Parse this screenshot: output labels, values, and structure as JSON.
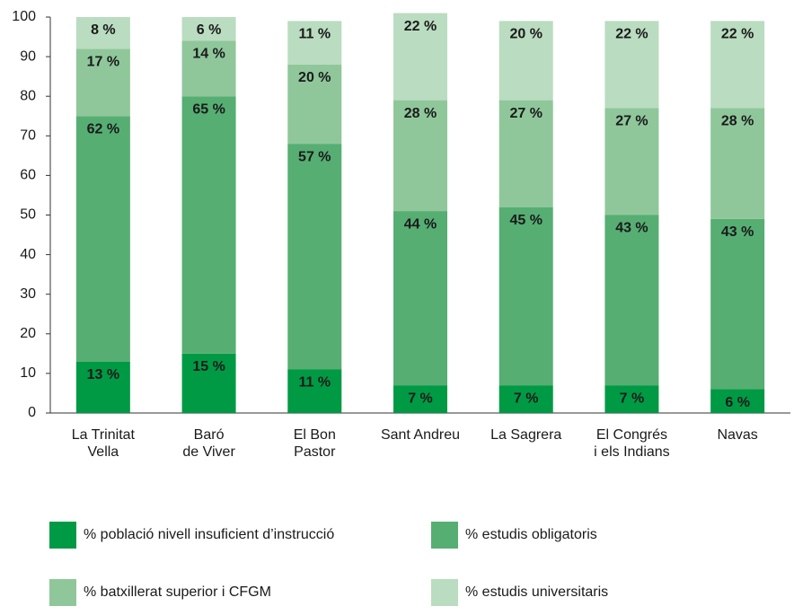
{
  "chart_data": {
    "type": "stacked_bar",
    "categories": [
      [
        "La Trinitat",
        "Vella"
      ],
      [
        "Baró",
        "de Viver"
      ],
      [
        "El Bon",
        "Pastor"
      ],
      [
        "Sant Andreu"
      ],
      [
        "La Sagrera"
      ],
      [
        "El Congrés",
        "i els Indians"
      ],
      [
        "Navas"
      ]
    ],
    "series": [
      {
        "name": "% població nivell insuficient d’instrucció",
        "color": "#009a44",
        "label_color": "#ffffff",
        "values": [
          13,
          15,
          11,
          7,
          7,
          7,
          6
        ],
        "value_labels": [
          "13 %",
          "15 %",
          "11 %",
          "7 %",
          "7 %",
          "7 %",
          "6 %"
        ]
      },
      {
        "name": "% estudis obligatoris",
        "color": "#56ae73",
        "label_color": "#1a1a1a",
        "values": [
          62,
          65,
          57,
          44,
          45,
          43,
          43
        ],
        "value_labels": [
          "62 %",
          "65 %",
          "57 %",
          "44 %",
          "45 %",
          "43 %",
          "43 %"
        ]
      },
      {
        "name": "% batxillerat superior i CFGM",
        "color": "#8fc79b",
        "label_color": "#1a1a1a",
        "values": [
          17,
          14,
          20,
          28,
          27,
          27,
          28
        ],
        "value_labels": [
          "17 %",
          "14 %",
          "20 %",
          "28 %",
          "27 %",
          "27 %",
          "28 %"
        ]
      },
      {
        "name": "% estudis universitaris",
        "color": "#badcc0",
        "label_color": "#1a1a1a",
        "values": [
          8,
          6,
          11,
          22,
          20,
          22,
          22
        ],
        "value_labels": [
          "8 %",
          "6 %",
          "11 %",
          "22 %",
          "20 %",
          "22 %",
          "22 %"
        ]
      }
    ],
    "ylim": [
      0,
      100
    ],
    "yticks": [
      0,
      10,
      20,
      30,
      40,
      50,
      60,
      70,
      80,
      90,
      100
    ],
    "grid": false
  }
}
